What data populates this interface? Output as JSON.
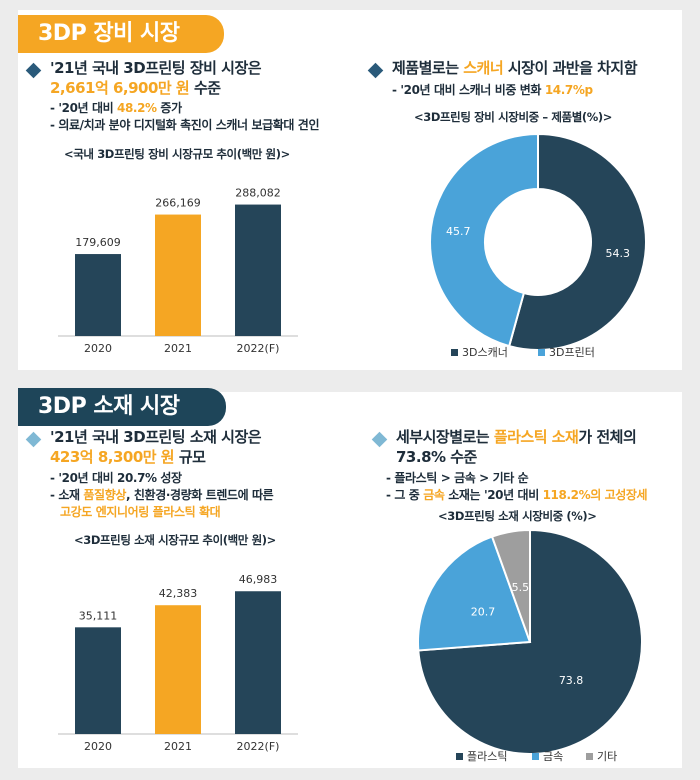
{
  "equipment": {
    "tab": "3DP 장비 시장",
    "left": {
      "headline_1": "'21년 국내 3D프린팅 장비 시장은",
      "headline_2_highlight": "2,661억 6,900만 원",
      "headline_2_rest": " 수준",
      "bullet_1_prefix": "- '20년 대비 ",
      "bullet_1_highlight": "48.2%",
      "bullet_1_suffix": " 증가",
      "bullet_2": "- 의료/치과 분야 디지털화 촉진이 스캐너 보급확대 견인",
      "caption": "<국내 3D프린팅 장비 시장규모 추이(백만 원)>"
    },
    "right": {
      "headline_prefix": "제품별로는 ",
      "headline_highlight": "스캐너",
      "headline_suffix": " 시장이 과반을 차지함",
      "bullet_prefix": "- '20년 대비 스캐너 비중 변화 ",
      "bullet_highlight": "14.7%p",
      "caption": "<3D프린팅 장비 시장비중 – 제품별(%)>"
    }
  },
  "materials": {
    "tab": "3DP 소재 시장",
    "left": {
      "headline_1": "'21년 국내 3D프린팅 소재 시장은",
      "headline_2_highlight": "423억 8,300만 원",
      "headline_2_rest": " 규모",
      "bullet_1": "- '20년 대비 20.7% 성장",
      "bullet_2_prefix": "- 소재 ",
      "bullet_2_highlight": "품질향상",
      "bullet_2_suffix": ", 친환경·경량화 트렌드에 따른",
      "bullet_3": "고강도 엔지니어링 플라스틱 확대",
      "caption": "<3D프린팅 소재 시장규모 추이(백만 원)>"
    },
    "right": {
      "headline_prefix": "세부시장별로는 ",
      "headline_highlight": "플라스틱 소재",
      "headline_suffix": "가 전체의",
      "headline_2": "73.8% 수준",
      "bullet_1": "- 플라스틱 > 금속 > 기타 순",
      "bullet_2_prefix": "- 그 중 ",
      "bullet_2_highlight1": "금속",
      "bullet_2_middle": " 소재는 '20년 대비 ",
      "bullet_2_highlight2": "118.2%의 고성장세",
      "caption": "<3D프린팅 소재 시장비중 (%)>"
    }
  },
  "colors": {
    "navy": "#254559",
    "orange": "#f5a623",
    "light_blue": "#4aa3d9",
    "gray": "#9e9e9e"
  },
  "chart_data": [
    {
      "type": "bar",
      "categories": [
        "2020",
        "2021",
        "2022(F)"
      ],
      "values": [
        179609,
        266169,
        288082
      ],
      "value_labels": [
        "179,609",
        "266,169",
        "288,082"
      ],
      "highlight_index": 1,
      "ylim": [
        0,
        320000
      ]
    },
    {
      "type": "pie",
      "donut": true,
      "labels": [
        "3D스캐너",
        "3D프린터"
      ],
      "values": [
        54.3,
        45.7
      ],
      "value_labels": [
        "54.3",
        "45.7"
      ],
      "legend_position": "bottom"
    },
    {
      "type": "bar",
      "categories": [
        "2020",
        "2021",
        "2022(F)"
      ],
      "values": [
        35111,
        42383,
        46983
      ],
      "value_labels": [
        "35,111",
        "42,383",
        "46,983"
      ],
      "highlight_index": 1,
      "ylim": [
        0,
        52000
      ]
    },
    {
      "type": "pie",
      "donut": true,
      "labels": [
        "플라스틱",
        "금속",
        "기타"
      ],
      "values": [
        73.8,
        20.7,
        5.5
      ],
      "value_labels": [
        "73.8",
        "20.7",
        "5.5"
      ],
      "legend_position": "bottom"
    }
  ]
}
